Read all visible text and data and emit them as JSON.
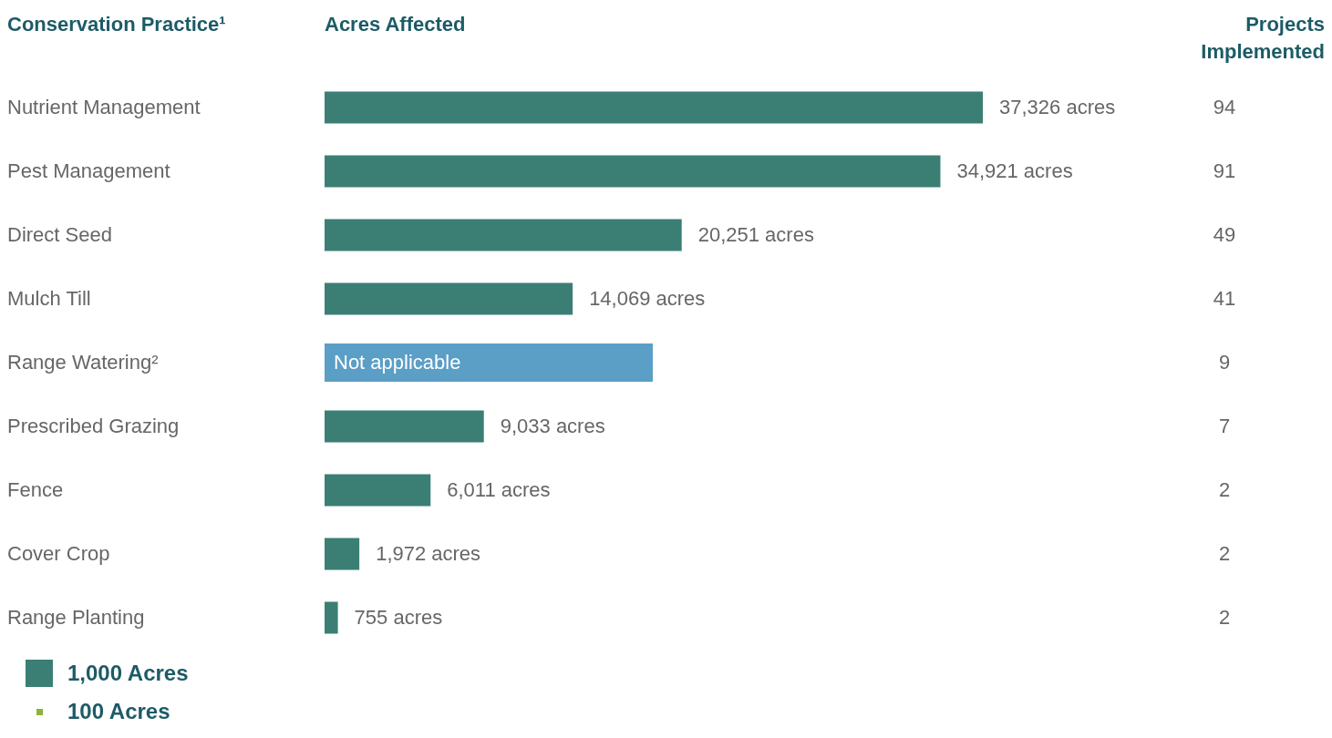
{
  "chart_data": {
    "type": "bar",
    "orientation": "horizontal",
    "ylabel": "Conservation Practice¹",
    "xlabel": "Acres Affected",
    "categories": [
      "Nutrient Management",
      "Pest Management",
      "Direct Seed",
      "Mulch Till",
      "Range Watering²",
      "Prescribed Grazing",
      "Fence",
      "Cover Crop",
      "Range Planting"
    ],
    "values": [
      37326,
      34921,
      20251,
      14069,
      null,
      9033,
      6011,
      1972,
      755
    ],
    "value_labels": [
      "37,326 acres",
      "34,921 acres",
      "20,251 acres",
      "14,069 acres",
      null,
      "9,033 acres",
      "6,011 acres",
      "1,972 acres",
      "755 acres"
    ],
    "color": "#3b7f74",
    "bands": [
      {
        "axis": "y",
        "from": "Range Watering²",
        "to": "Range Watering²",
        "label": "Not applicable",
        "color": "#5b9ec6"
      }
    ],
    "annotations": [
      "Projects Implemented",
      "94",
      "91",
      "49",
      "41",
      "9",
      "7",
      "2",
      "2",
      "2",
      "1,000 Acres",
      "100 Acres"
    ]
  }
}
